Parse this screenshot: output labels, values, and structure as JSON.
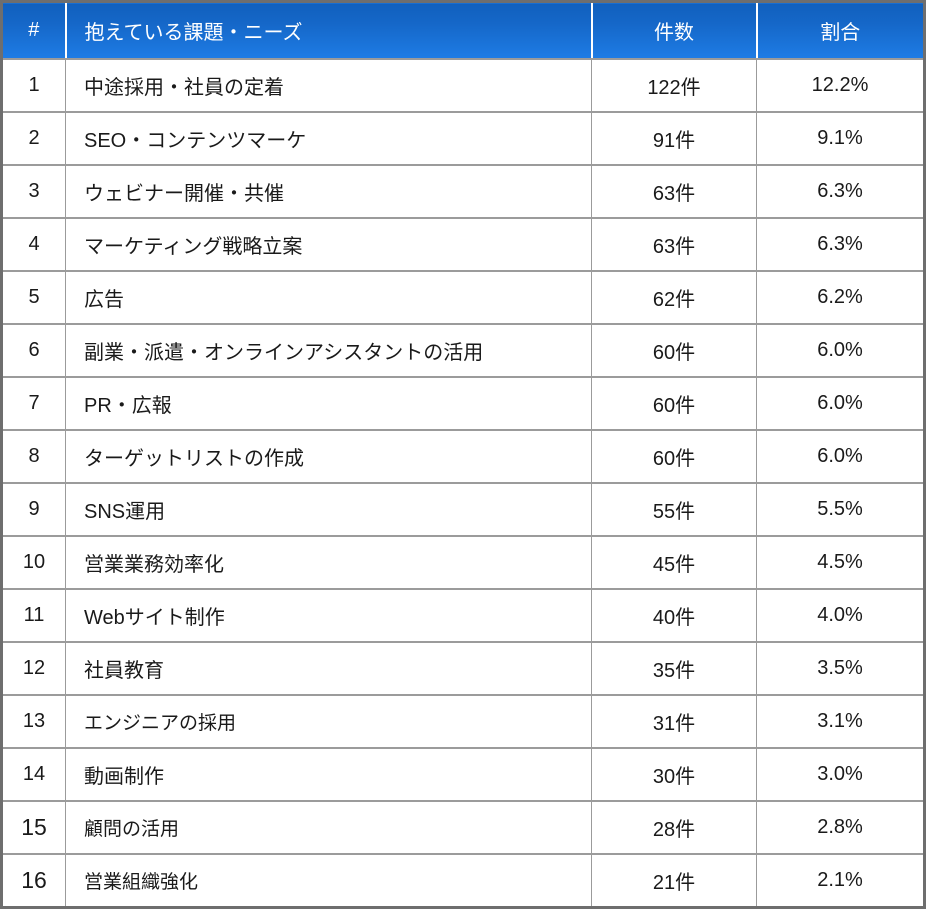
{
  "table": {
    "columns": [
      {
        "key": "rank",
        "label": "#"
      },
      {
        "key": "issue",
        "label": "抱えている課題・ニーズ"
      },
      {
        "key": "count",
        "label": "件数"
      },
      {
        "key": "ratio",
        "label": "割合"
      }
    ],
    "rows": [
      {
        "rank": "1",
        "issue": "中途採用・社員の定着",
        "count": "122件",
        "ratio": "12.2%"
      },
      {
        "rank": "2",
        "issue": "SEO・コンテンツマーケ",
        "count": "91件",
        "ratio": "9.1%"
      },
      {
        "rank": "3",
        "issue": "ウェビナー開催・共催",
        "count": "63件",
        "ratio": "6.3%"
      },
      {
        "rank": "4",
        "issue": "マーケティング戦略立案",
        "count": "63件",
        "ratio": "6.3%"
      },
      {
        "rank": "5",
        "issue": "広告",
        "count": "62件",
        "ratio": "6.2%"
      },
      {
        "rank": "6",
        "issue": "副業・派遣・オンラインアシスタントの活用",
        "count": "60件",
        "ratio": "6.0%"
      },
      {
        "rank": "7",
        "issue": "PR・広報",
        "count": "60件",
        "ratio": "6.0%"
      },
      {
        "rank": "8",
        "issue": "ターゲットリストの作成",
        "count": "60件",
        "ratio": "6.0%"
      },
      {
        "rank": "9",
        "issue": "SNS運用",
        "count": "55件",
        "ratio": "5.5%"
      },
      {
        "rank": "10",
        "issue": "営業業務効率化",
        "count": "45件",
        "ratio": "4.5%"
      },
      {
        "rank": "11",
        "issue": "Webサイト制作",
        "count": "40件",
        "ratio": "4.0%"
      },
      {
        "rank": "12",
        "issue": "社員教育",
        "count": "35件",
        "ratio": "3.5%"
      },
      {
        "rank": "13",
        "issue": "エンジニアの採用",
        "count": "31件",
        "ratio": "3.1%"
      },
      {
        "rank": "14",
        "issue": "動画制作",
        "count": "30件",
        "ratio": "3.0%"
      },
      {
        "rank": "15",
        "issue": "顧問の活用",
        "count": "28件",
        "ratio": "2.8%"
      },
      {
        "rank": "16",
        "issue": "営業組織強化",
        "count": "21件",
        "ratio": "2.1%"
      }
    ],
    "colors": {
      "header_gradient_top": "#1160bd",
      "header_gradient_bottom": "#1e7ce5",
      "header_text": "#ffffff",
      "header_divider": "#ffffff",
      "grid_line": "#9b9b9b",
      "outer_border": "#6e6e6e",
      "body_text": "#1a1a1a",
      "row_background": "#ffffff"
    }
  },
  "chart_data": {
    "type": "table",
    "title": "抱えている課題・ニーズ",
    "columns": [
      "#",
      "抱えている課題・ニーズ",
      "件数",
      "割合"
    ],
    "categories": [
      "中途採用・社員の定着",
      "SEO・コンテンツマーケ",
      "ウェビナー開催・共催",
      "マーケティング戦略立案",
      "広告",
      "副業・派遣・オンラインアシスタントの活用",
      "PR・広報",
      "ターゲットリストの作成",
      "SNS運用",
      "営業業務効率化",
      "Webサイト制作",
      "社員教育",
      "エンジニアの採用",
      "動画制作",
      "顧問の活用",
      "営業組織強化"
    ],
    "series": [
      {
        "name": "件数",
        "values": [
          122,
          91,
          63,
          63,
          62,
          60,
          60,
          60,
          55,
          45,
          40,
          35,
          31,
          30,
          28,
          21
        ]
      },
      {
        "name": "割合(%)",
        "values": [
          12.2,
          9.1,
          6.3,
          6.3,
          6.2,
          6.0,
          6.0,
          6.0,
          5.5,
          4.5,
          4.0,
          3.5,
          3.1,
          3.0,
          2.8,
          2.1
        ]
      }
    ]
  }
}
